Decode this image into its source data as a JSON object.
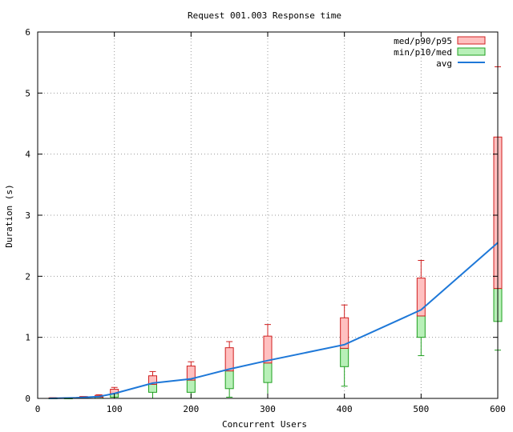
{
  "chart_data": {
    "type": "box",
    "title": "Request 001.003 Response time",
    "xlabel": "Concurrent Users",
    "ylabel": "Duration (s)",
    "xlim": [
      0,
      600
    ],
    "ylim": [
      0,
      6
    ],
    "xticks": [
      "0",
      "100",
      "200",
      "300",
      "400",
      "500",
      "600"
    ],
    "yticks": [
      "0",
      "1",
      "2",
      "3",
      "4",
      "5",
      "6"
    ],
    "grid": true,
    "legend_position": "top-right",
    "colors": {
      "upper_fill": "#ffc0c0",
      "upper_stroke": "#d02020",
      "lower_fill": "#b8f0b8",
      "lower_stroke": "#20a020",
      "avg_line": "#1e78d8",
      "grid": "#999999"
    },
    "series": [
      {
        "name": "med/p90/p95",
        "kind": "upper-box"
      },
      {
        "name": "min/p10/med",
        "kind": "lower-box"
      },
      {
        "name": "avg",
        "kind": "line"
      }
    ],
    "boxes": [
      {
        "x": 20,
        "min": 0.0,
        "p10": 0.0,
        "med": 0.0,
        "p90": 0.01,
        "p95": 0.01
      },
      {
        "x": 40,
        "min": 0.0,
        "p10": 0.0,
        "med": 0.0,
        "p90": 0.01,
        "p95": 0.01
      },
      {
        "x": 60,
        "min": 0.0,
        "p10": 0.0,
        "med": 0.01,
        "p90": 0.03,
        "p95": 0.03
      },
      {
        "x": 80,
        "min": 0.0,
        "p10": 0.0,
        "med": 0.02,
        "p90": 0.05,
        "p95": 0.06
      },
      {
        "x": 100,
        "min": 0.0,
        "p10": 0.02,
        "med": 0.08,
        "p90": 0.15,
        "p95": 0.18
      },
      {
        "x": 150,
        "min": 0.0,
        "p10": 0.1,
        "med": 0.23,
        "p90": 0.37,
        "p95": 0.44
      },
      {
        "x": 200,
        "min": 0.0,
        "p10": 0.1,
        "med": 0.3,
        "p90": 0.53,
        "p95": 0.6
      },
      {
        "x": 250,
        "min": 0.02,
        "p10": 0.16,
        "med": 0.45,
        "p90": 0.83,
        "p95": 0.93
      },
      {
        "x": 300,
        "min": 0.0,
        "p10": 0.26,
        "med": 0.58,
        "p90": 1.02,
        "p95": 1.21
      },
      {
        "x": 400,
        "min": 0.2,
        "p10": 0.52,
        "med": 0.82,
        "p90": 1.32,
        "p95": 1.53
      },
      {
        "x": 500,
        "min": 0.7,
        "p10": 1.0,
        "med": 1.35,
        "p90": 1.97,
        "p95": 2.26
      },
      {
        "x": 600,
        "min": 0.79,
        "p10": 1.26,
        "med": 1.8,
        "p90": 4.28,
        "p95": 5.43
      }
    ],
    "avg": {
      "x": [
        15,
        50,
        80,
        100,
        150,
        200,
        250,
        300,
        400,
        500,
        600
      ],
      "y": [
        0.0,
        0.01,
        0.03,
        0.08,
        0.25,
        0.32,
        0.48,
        0.62,
        0.88,
        1.45,
        2.55
      ]
    }
  }
}
